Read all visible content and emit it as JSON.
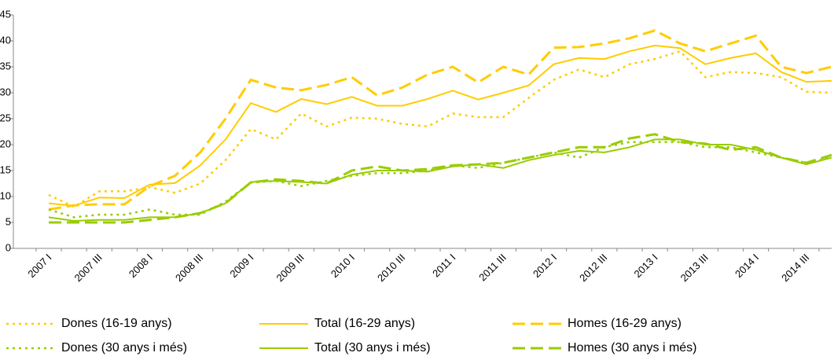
{
  "chart_data": {
    "type": "line",
    "categories": [
      "2007 I",
      null,
      "2007 III",
      null,
      "2008 I",
      null,
      "2008 III",
      null,
      "2009 I",
      null,
      "2009 III",
      null,
      "2010 I",
      null,
      "2010 III",
      null,
      "2011 I",
      null,
      "2011 III",
      null,
      "2012 I",
      null,
      "2012 III",
      null,
      "2013 I",
      null,
      "2013 III",
      null,
      "2014 I",
      null,
      "2014 III",
      null
    ],
    "ylim": [
      0,
      45
    ],
    "yticks": [
      0,
      5,
      10,
      15,
      20,
      25,
      30,
      35,
      40,
      45
    ],
    "series": [
      {
        "name": "Dones (16-19 anys)",
        "color": "#ffcc00",
        "style": "dotted",
        "values": [
          10.3,
          8,
          11,
          11,
          11.8,
          10.7,
          12.5,
          17,
          23,
          21,
          26,
          23.5,
          25.2,
          25,
          24,
          23.5,
          26,
          25.3,
          25.3,
          29,
          32.5,
          34.5,
          33,
          35.5,
          36.5,
          38,
          33,
          34,
          33.8,
          33,
          30.2,
          30
        ]
      },
      {
        "name": "Total (16-29 anys)",
        "color": "#ffcc00",
        "style": "solid",
        "values": [
          8.7,
          8.2,
          9.8,
          9.7,
          12.3,
          12.6,
          16,
          21,
          28,
          26.3,
          28.8,
          27.8,
          29.2,
          27.5,
          27.5,
          28.8,
          30.4,
          28.7,
          30,
          31.4,
          35.5,
          36.7,
          36.5,
          38,
          39.1,
          38.6,
          35.5,
          36.7,
          37.6,
          34,
          32.1,
          32.3
        ]
      },
      {
        "name": "Homes (16-29 anys)",
        "color": "#ffcc00",
        "style": "dashed",
        "values": [
          7.5,
          8.3,
          8.5,
          8.5,
          12,
          14,
          18.5,
          25,
          32.5,
          31,
          30.5,
          31.5,
          33,
          29.5,
          31,
          33.5,
          35,
          32,
          35,
          33.5,
          38.7,
          38.8,
          39.5,
          40.5,
          42,
          39.5,
          38,
          39.5,
          41,
          35,
          33.8,
          35
        ]
      },
      {
        "name": "Dones (30 anys i més)",
        "color": "#99cc00",
        "style": "dotted",
        "values": [
          7.5,
          6,
          6.5,
          6.5,
          7.5,
          6.5,
          6.5,
          9,
          12.7,
          13,
          12,
          13,
          14,
          14.5,
          14.5,
          15,
          16,
          15.5,
          16.5,
          17.5,
          18.5,
          17.5,
          19.5,
          20.5,
          20.5,
          20.5,
          19.5,
          19.5,
          18.5,
          17.5,
          16.5,
          17.5
        ]
      },
      {
        "name": "Total (30 anys i més)",
        "color": "#99cc00",
        "style": "solid",
        "values": [
          6,
          5.3,
          5.5,
          5.5,
          6,
          6,
          6.8,
          8.7,
          12.8,
          13,
          12.8,
          12.5,
          14.2,
          15,
          15,
          14.8,
          15.8,
          16.2,
          15.5,
          17,
          18,
          18.8,
          18.5,
          19.5,
          21,
          21,
          20,
          20,
          19,
          17.5,
          16.2,
          17.5
        ]
      },
      {
        "name": "Homes (30 anys i més)",
        "color": "#99cc00",
        "style": "dashed",
        "values": [
          5,
          5,
          5,
          5,
          5.5,
          6,
          6.8,
          8.7,
          12.7,
          13.3,
          13,
          12.5,
          15,
          15.8,
          15,
          15.3,
          16,
          16.2,
          16.5,
          17.5,
          18.5,
          19.5,
          19.5,
          21.2,
          22,
          20.5,
          20.2,
          19,
          19.5,
          17.5,
          16.5,
          18
        ]
      }
    ]
  }
}
